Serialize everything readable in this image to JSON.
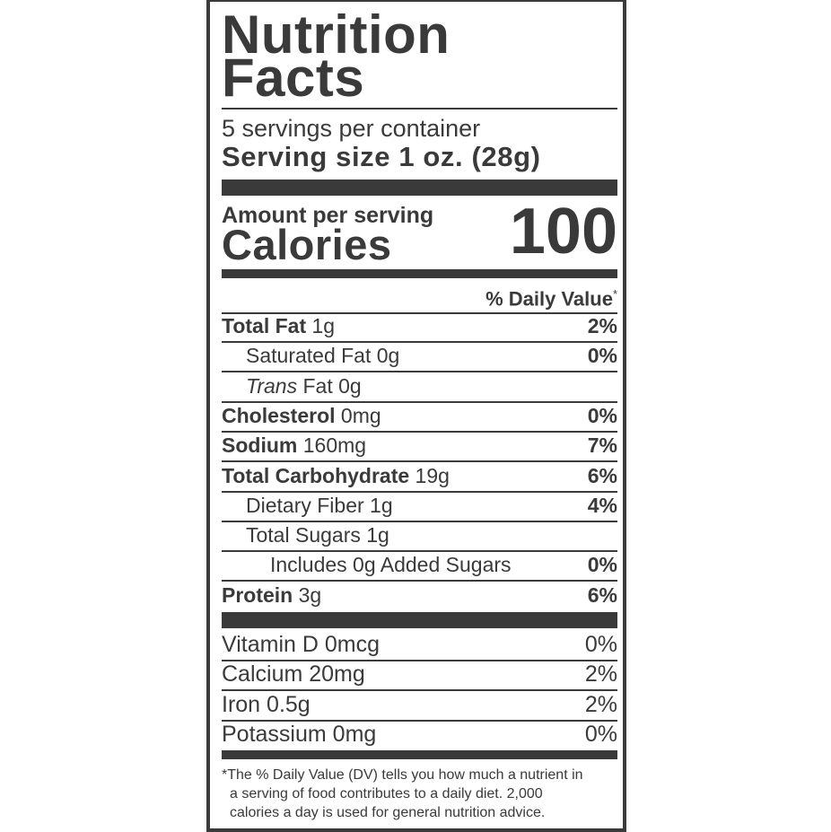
{
  "title_line1": "Nutrition",
  "title_line2": "Facts",
  "servings_per_container": "5 servings per container",
  "serving_size_label": "Serving size",
  "serving_size_value": "1 oz. (28g)",
  "amount_per_serving": "Amount per serving",
  "calories_label": "Calories",
  "calories_value": "100",
  "daily_value_header": "% Daily Value",
  "daily_value_asterisk": "*",
  "nutrients": [
    {
      "name": "Total Fat",
      "amount": "1g",
      "dv": "2%",
      "bold": true,
      "indent": 0
    },
    {
      "name": "Saturated Fat",
      "amount": "0g",
      "dv": "0%",
      "bold": false,
      "indent": 1
    },
    {
      "name": "Trans",
      "name_suffix": "Fat",
      "amount": "0g",
      "dv": "",
      "bold": false,
      "indent": 1,
      "italic_prefix": true
    },
    {
      "name": "Cholesterol",
      "amount": "0mg",
      "dv": "0%",
      "bold": true,
      "indent": 0
    },
    {
      "name": "Sodium",
      "amount": "160mg",
      "dv": "7%",
      "bold": true,
      "indent": 0
    },
    {
      "name": "Total Carbohydrate",
      "amount": "19g",
      "dv": "6%",
      "bold": true,
      "indent": 0
    },
    {
      "name": "Dietary Fiber",
      "amount": "1g",
      "dv": "4%",
      "bold": false,
      "indent": 1
    },
    {
      "name": "Total Sugars",
      "amount": "1g",
      "dv": "",
      "bold": false,
      "indent": 1
    },
    {
      "name": "Includes 0g Added Sugars",
      "amount": "",
      "dv": "0%",
      "bold": false,
      "indent": 2
    },
    {
      "name": "Protein",
      "amount": "3g",
      "dv": "6%",
      "bold": true,
      "indent": 0
    }
  ],
  "vitamins": [
    {
      "name": "Vitamin D",
      "amount": "0mcg",
      "dv": "0%"
    },
    {
      "name": "Calcium",
      "amount": "20mg",
      "dv": "2%"
    },
    {
      "name": "Iron",
      "amount": "0.5g",
      "dv": "2%"
    },
    {
      "name": "Potassium",
      "amount": "0mg",
      "dv": "0%"
    }
  ],
  "footnote": [
    "*The % Daily Value (DV) tells you how much a nutrient in",
    "a serving of food contributes to a daily diet. 2,000",
    "calories a day is used for general nutrition advice."
  ]
}
